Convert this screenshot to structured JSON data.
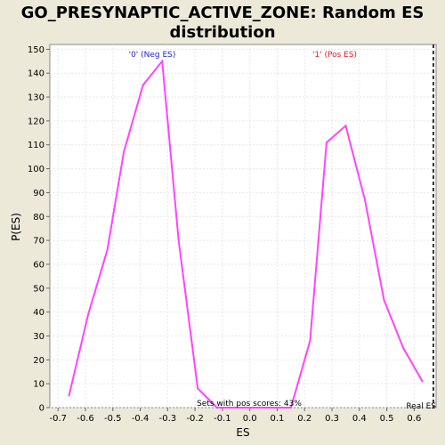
{
  "chart_data": {
    "type": "line",
    "title": "GO_PRESYNAPTIC_ACTIVE_ZONE: Random ES distribution",
    "title_lines": [
      "GO_PRESYNAPTIC_ACTIVE_ZONE: Random ES",
      "distribution"
    ],
    "xlabel": "ES",
    "ylabel": "P(ES)",
    "xlim": [
      -0.73,
      0.68
    ],
    "ylim": [
      0,
      152
    ],
    "x_ticks": [
      -0.7,
      -0.6,
      -0.5,
      -0.4,
      -0.3,
      -0.2,
      -0.1,
      0.0,
      0.1,
      0.2,
      0.3,
      0.4,
      0.5,
      0.6
    ],
    "x_tick_labels": [
      "-0.7",
      "-0.6",
      "-0.5",
      "-0.4",
      "-0.3",
      "-0.2",
      "-0.1",
      "0.0",
      "0.1",
      "0.2",
      "0.3",
      "0.4",
      "0.5",
      "0.6"
    ],
    "y_ticks": [
      0,
      10,
      20,
      30,
      40,
      50,
      60,
      70,
      80,
      90,
      100,
      110,
      120,
      130,
      140,
      150
    ],
    "y_tick_labels": [
      "0",
      "10",
      "20",
      "30",
      "40",
      "50",
      "60",
      "70",
      "80",
      "90",
      "100",
      "110",
      "120",
      "130",
      "140",
      "150"
    ],
    "grid": true,
    "series": [
      {
        "color": "#ff44ff",
        "x": [
          -0.66,
          -0.59,
          -0.52,
          -0.46,
          -0.39,
          -0.32,
          -0.26,
          -0.19,
          -0.12,
          -0.05,
          0.01,
          0.08,
          0.15,
          0.22,
          0.28,
          0.35,
          0.42,
          0.49,
          0.56,
          0.63
        ],
        "y": [
          5,
          39,
          66,
          107,
          135,
          145,
          70,
          8,
          0,
          0,
          0,
          0,
          0,
          28,
          111,
          118,
          87,
          45,
          25,
          11
        ]
      }
    ],
    "real_es": 0.67,
    "real_es_color": "#333333",
    "annotations": {
      "neg_label": "'0' (Neg ES)",
      "neg_color": "#2222cc",
      "pos_label": "'1' (Pos ES)",
      "pos_color": "#dd2222",
      "pos_scores": "Sets with pos scores: 43%",
      "real_es_label": "Real ES"
    }
  }
}
